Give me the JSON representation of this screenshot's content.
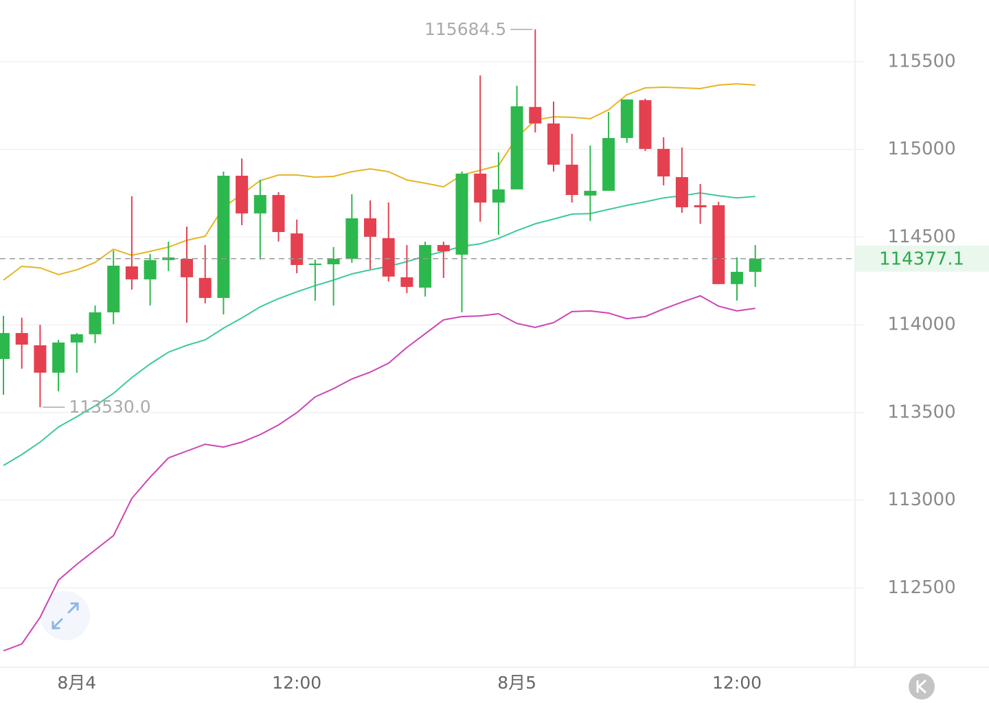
{
  "chart_data": {
    "type": "candlestick",
    "categories": [
      null,
      null,
      null,
      null,
      "8月4",
      null,
      null,
      null,
      null,
      null,
      null,
      null,
      null,
      null,
      null,
      null,
      "12:00",
      null,
      null,
      null,
      null,
      null,
      null,
      null,
      null,
      null,
      null,
      null,
      "8月5",
      null,
      null,
      null,
      null,
      null,
      null,
      null,
      null,
      null,
      null,
      null,
      "12:00",
      null
    ],
    "open": [
      113805,
      113953,
      113883,
      113727,
      113899,
      113946,
      114071,
      114333,
      114259,
      114369,
      114376,
      114267,
      114153,
      114850,
      114635,
      114740,
      114521,
      114341,
      114345,
      114376,
      114607,
      114494,
      114271,
      114212,
      114455,
      114400,
      114862,
      114697,
      114772,
      115242,
      115148,
      114913,
      114737,
      114764,
      115065,
      115281,
      115003,
      114842,
      114682,
      114682,
      114232,
      114302
    ],
    "high": [
      114051,
      114040,
      114000,
      113914,
      113953,
      114110,
      114423,
      114733,
      114404,
      114474,
      114560,
      114455,
      114874,
      114948,
      114827,
      114756,
      114600,
      114372,
      114443,
      114744,
      114709,
      114697,
      114455,
      114474,
      114474,
      114874,
      115422,
      114983,
      115363,
      115684.5,
      115273,
      115089,
      115022,
      115214,
      115285,
      115289,
      115069,
      115011,
      114803,
      114701,
      114384,
      114455
    ],
    "low": [
      113601,
      113750,
      113530,
      113621,
      113727,
      113895,
      114004,
      114200,
      114110,
      114306,
      114012,
      114122,
      114059,
      114568,
      114372,
      114474,
      114294,
      114138,
      114110,
      114353,
      114318,
      114247,
      114181,
      114161,
      114267,
      114071,
      114588,
      114513,
      114772,
      115097,
      114874,
      114697,
      114592,
      114764,
      115038,
      114991,
      114795,
      114639,
      114576,
      114232,
      114138,
      114216
    ],
    "close": [
      113953,
      113887,
      113727,
      113899,
      113946,
      114071,
      114337,
      114259,
      114369,
      114384,
      114271,
      114153,
      114850,
      114635,
      114740,
      114529,
      114341,
      114349,
      114376,
      114607,
      114502,
      114275,
      114216,
      114455,
      114419,
      114862,
      114697,
      114772,
      115246,
      115148,
      114913,
      114740,
      114764,
      115065,
      115285,
      115003,
      114846,
      114670,
      114670,
      114232,
      114302,
      114377.1
    ],
    "up_color": "#2db84d",
    "down_color": "#e5404f",
    "series": [
      {
        "color": "#e6b422",
        "values": [
          114255,
          114333,
          114325,
          114286,
          114313,
          114356,
          114431,
          114396,
          114419,
          114443,
          114482,
          114505,
          114670,
          114744,
          114822,
          114854,
          114854,
          114842,
          114846,
          114873,
          114889,
          114873,
          114826,
          114807,
          114787,
          114854,
          114881,
          114908,
          115069,
          115167,
          115186,
          115183,
          115175,
          115226,
          115312,
          115351,
          115355,
          115351,
          115347,
          115367,
          115374,
          115367
        ]
      },
      {
        "color": "#3cc8a0",
        "values": [
          113198,
          113260,
          113331,
          113417,
          113476,
          113538,
          113609,
          113699,
          113777,
          113844,
          113883,
          113914,
          113981,
          114039,
          114102,
          114149,
          114188,
          114223,
          114255,
          114290,
          114313,
          114333,
          114360,
          114392,
          114419,
          114447,
          114462,
          114493,
          114537,
          114576,
          114603,
          114631,
          114634,
          114658,
          114681,
          114701,
          114724,
          114736,
          114752,
          114736,
          114724,
          114732
        ]
      },
      {
        "color": "#cc44b4",
        "values": [
          112141,
          112180,
          112332,
          112544,
          112634,
          112716,
          112798,
          113010,
          113131,
          113241,
          113280,
          113319,
          113303,
          113331,
          113374,
          113429,
          113499,
          113589,
          113636,
          113691,
          113730,
          113781,
          113871,
          113949,
          114028,
          114047,
          114051,
          114063,
          114008,
          113985,
          114012,
          114075,
          114079,
          114067,
          114035,
          114047,
          114090,
          114129,
          114165,
          114106,
          114079,
          114094
        ]
      }
    ],
    "high_label": "115684.5",
    "low_label": "113530.0",
    "last_price_label": "114377.1",
    "ylim": [
      112047,
      115852
    ],
    "yticks": [
      112500,
      113000,
      113500,
      114000,
      114500,
      115000,
      115500
    ],
    "grid": true
  }
}
